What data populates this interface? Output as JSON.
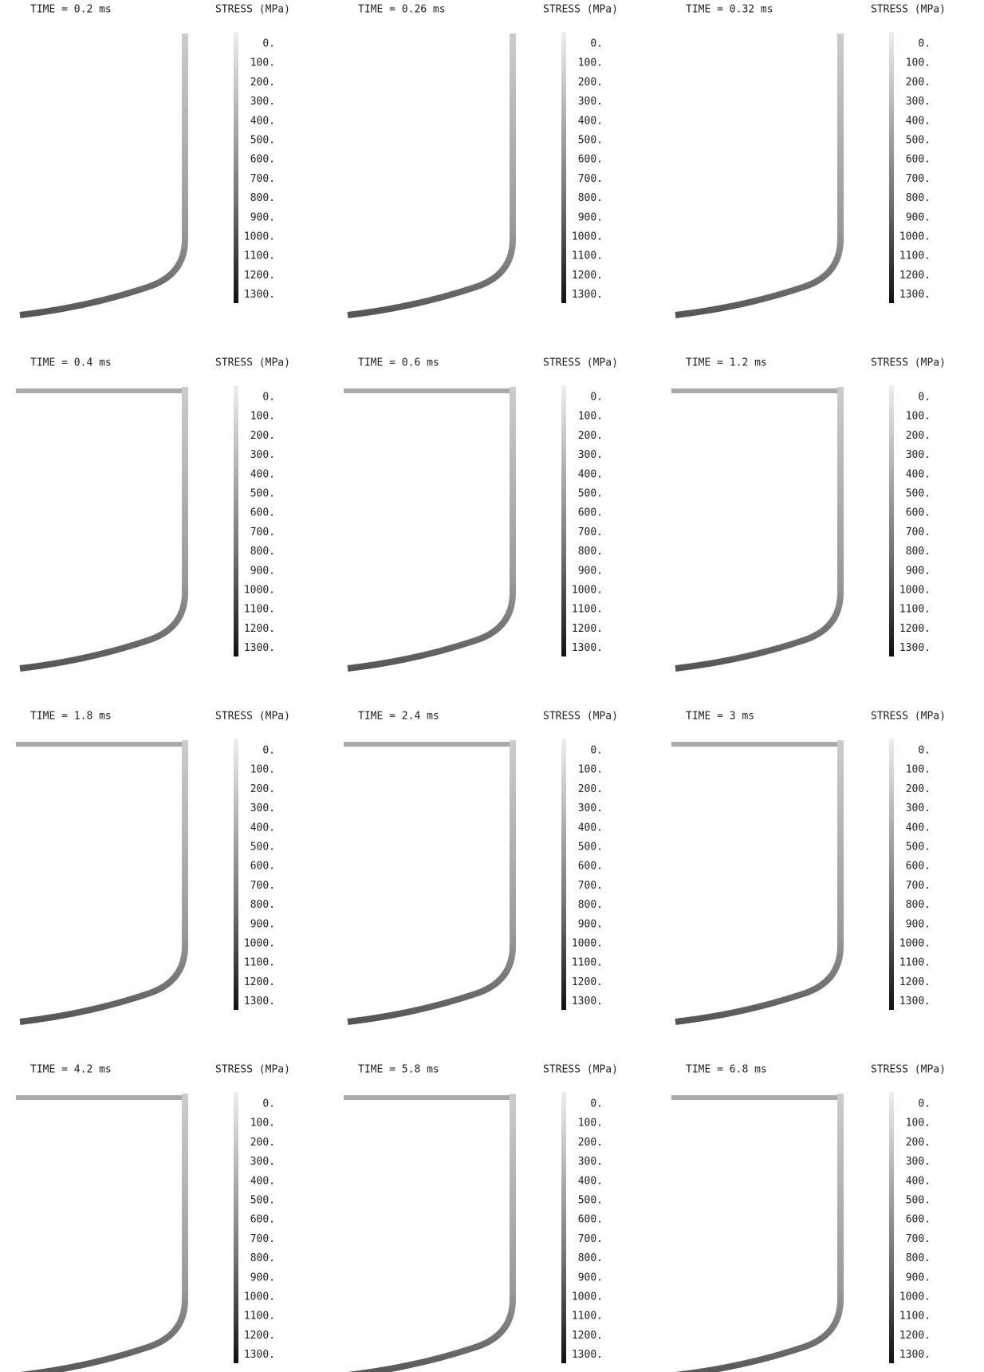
{
  "panels": [
    {
      "time": "TIME = 0.2 ms"
    },
    {
      "time": "TIME = 0.26 ms"
    },
    {
      "time": "TIME = 0.32 ms"
    },
    {
      "time": "TIME = 0.4 ms"
    },
    {
      "time": "TIME = 0.6 ms"
    },
    {
      "time": "TIME = 1.2 ms"
    },
    {
      "time": "TIME = 1.8 ms"
    },
    {
      "time": "TIME = 2.4 ms"
    },
    {
      "time": "TIME = 3 ms"
    },
    {
      "time": "TIME = 4.2 ms"
    },
    {
      "time": "TIME = 5.8 ms"
    },
    {
      "time": "TIME = 6.8 ms"
    }
  ],
  "scale": {
    "title": "STRESS (MPa)",
    "labels": [
      "0.",
      "100.",
      "200.",
      "300.",
      "400.",
      "500.",
      "600.",
      "700.",
      "800.",
      "900.",
      "1000.",
      "1100.",
      "1200.",
      "1300."
    ]
  }
}
